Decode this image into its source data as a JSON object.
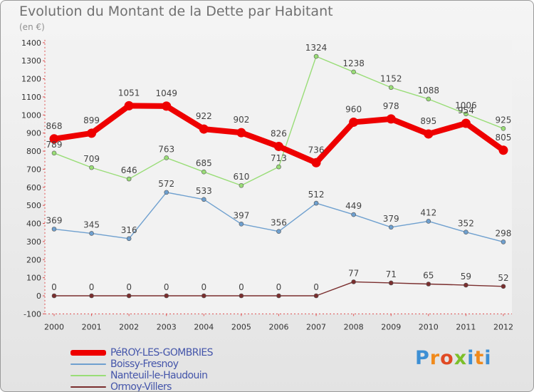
{
  "title": "Evolution du Montant de la Dette par Habitant",
  "subtitle": "(en €)",
  "logo": {
    "p": "P",
    "r": "r",
    "o": "o",
    "x": "x",
    "i": "i",
    "t": "t",
    "i2": "i"
  },
  "chart_data": {
    "type": "line",
    "title": "Evolution du Montant de la Dette par Habitant",
    "subtitle": "(en €)",
    "xlabel": "",
    "ylabel": "",
    "ylim": [
      -100,
      1400
    ],
    "yticks": [
      -100,
      0,
      100,
      200,
      300,
      400,
      500,
      600,
      700,
      800,
      900,
      1000,
      1100,
      1200,
      1300,
      1400
    ],
    "grid": false,
    "legend_position": "bottom-left",
    "categories": [
      "2000",
      "2001",
      "2002",
      "2003",
      "2004",
      "2005",
      "2006",
      "2007",
      "2008",
      "2009",
      "2010",
      "2011",
      "2012"
    ],
    "series": [
      {
        "name": "PéROY-LES-GOMBRIES",
        "color": "#ee0000",
        "values": [
          868,
          899,
          1051,
          1049,
          922,
          902,
          826,
          736,
          960,
          978,
          895,
          954,
          805
        ]
      },
      {
        "name": "Boissy-Fresnoy",
        "color": "#6fa0cf",
        "values": [
          369,
          345,
          316,
          572,
          533,
          397,
          356,
          512,
          449,
          379,
          412,
          352,
          298
        ]
      },
      {
        "name": "Nanteuil-le-Haudouin",
        "color": "#99dd77",
        "values": [
          789,
          709,
          646,
          763,
          685,
          610,
          713,
          1324,
          1238,
          1152,
          1088,
          1006,
          925
        ]
      },
      {
        "name": "Ormoy-Villers",
        "color": "#7a2e2e",
        "values": [
          0,
          0,
          0,
          0,
          0,
          0,
          0,
          0,
          77,
          71,
          65,
          59,
          52
        ]
      }
    ]
  }
}
